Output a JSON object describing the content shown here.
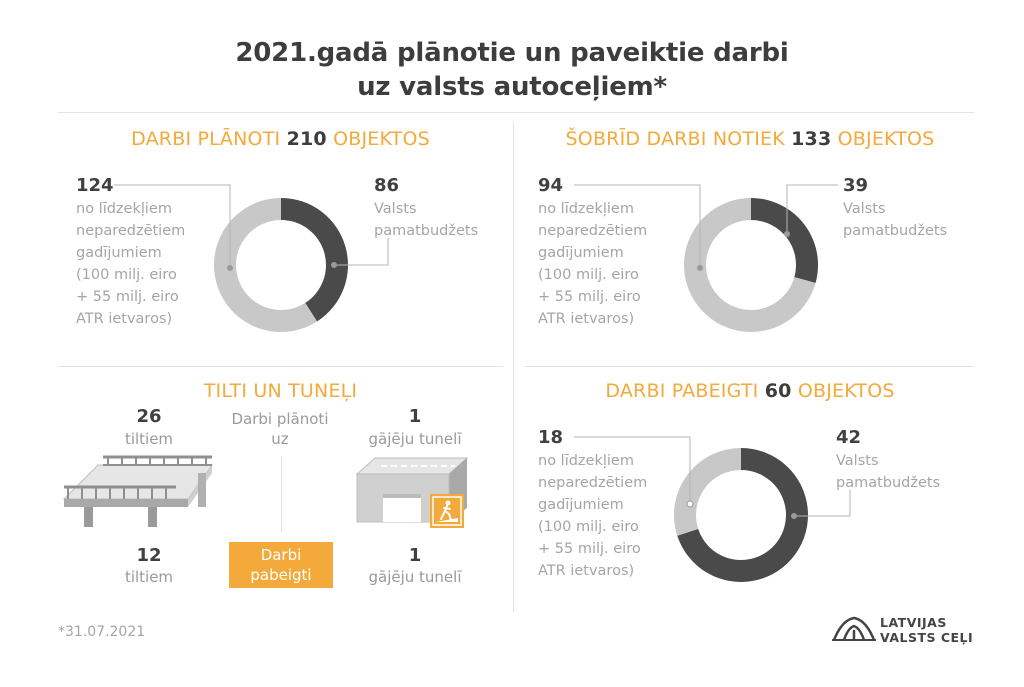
{
  "title_line1": "2021.gadā plānotie un paveiktie darbi",
  "title_line2": "uz valsts autoceļiem*",
  "footnote": "*31.07.2021",
  "logo": {
    "line1": "LATVIJAS",
    "line2": "VALSTS CEĻI",
    "icon": "road-logo-icon"
  },
  "colors": {
    "accent": "#f4a93b",
    "dark": "#4a4a4a",
    "light": "#c8c8c8"
  },
  "panels": {
    "planned": {
      "title_a": "DARBI PLĀNOTI",
      "title_num": "210",
      "title_b": "OBJEKTOS"
    },
    "ongoing": {
      "title_a": "ŠOBRĪD DARBI NOTIEK",
      "title_num": "133",
      "title_b": "OBJEKTOS"
    },
    "completed": {
      "title_a": "DARBI PABEIGTI",
      "title_num": "60",
      "title_b": "OBJEKTOS"
    }
  },
  "left_label": {
    "l1": "no līdzekļiem",
    "l2": "neparedzētiem",
    "l3": "gadījumiem",
    "l4": "(100 milj. eiro",
    "l5": "+ 55 milj. eiro",
    "l6": "ATR ietvaros)"
  },
  "right_label": {
    "l1": "Valsts",
    "l2": "pamatbudžets"
  },
  "tunnels": {
    "title": "TILTI UN TUNEĻI",
    "planned_label_1": "Darbi plānoti",
    "planned_label_2": "uz",
    "completed_badge_1": "Darbi",
    "completed_badge_2": "pabeigti",
    "bridges_planned_num": "26",
    "bridges_planned_label": "tiltiem",
    "bridges_completed_num": "12",
    "bridges_completed_label": "tiltiem",
    "tunnels_planned_num": "1",
    "tunnels_planned_label": "gājēju tunelī",
    "tunnels_completed_num": "1",
    "tunnels_completed_label": "gājēju tunelī",
    "icons": [
      "bridge-icon",
      "pedestrian-tunnel-icon",
      "pedestrian-sign-icon"
    ]
  },
  "chart_data": [
    {
      "type": "pie",
      "subtype": "donut",
      "total": 210,
      "slices": [
        {
          "label": "Valsts pamatbudžets",
          "value": 86,
          "color": "#4a4a4a"
        },
        {
          "label": "no līdzekļiem neparedzētiem gadījumiem (100 milj. eiro + 55 milj. eiro ATR ietvaros)",
          "value": 124,
          "color": "#c8c8c8"
        }
      ]
    },
    {
      "type": "pie",
      "subtype": "donut",
      "total": 133,
      "slices": [
        {
          "label": "Valsts pamatbudžets",
          "value": 39,
          "color": "#4a4a4a"
        },
        {
          "label": "no līdzekļiem neparedzētiem gadījumiem (100 milj. eiro + 55 milj. eiro ATR ietvaros)",
          "value": 94,
          "color": "#c8c8c8"
        }
      ]
    },
    {
      "type": "pie",
      "subtype": "donut",
      "total": 60,
      "slices": [
        {
          "label": "Valsts pamatbudžets",
          "value": 42,
          "color": "#4a4a4a"
        },
        {
          "label": "no līdzekļiem neparedzētiem gadījumiem (100 milj. eiro + 55 milj. eiro ATR ietvaros)",
          "value": 18,
          "color": "#c8c8c8"
        }
      ]
    }
  ]
}
